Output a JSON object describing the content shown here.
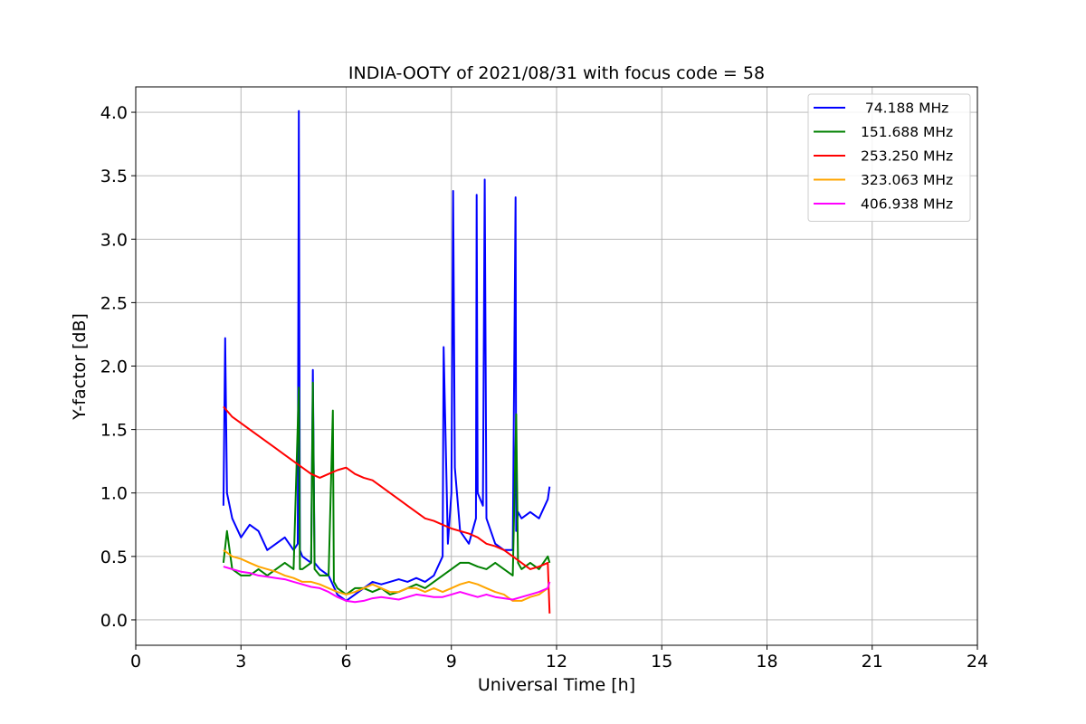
{
  "chart_data": {
    "type": "line",
    "title": "INDIA-OOTY of 2021/08/31 with focus code = 58",
    "xlabel": "Universal Time [h]",
    "ylabel": "Y-factor [dB]",
    "xlim": [
      0,
      24
    ],
    "ylim": [
      -0.2,
      4.2
    ],
    "xticks": [
      0,
      3,
      6,
      9,
      12,
      15,
      18,
      21,
      24
    ],
    "yticks": [
      0.0,
      0.5,
      1.0,
      1.5,
      2.0,
      2.5,
      3.0,
      3.5,
      4.0
    ],
    "xtick_labels": [
      "0",
      "3",
      "6",
      "9",
      "12",
      "15",
      "18",
      "21",
      "24"
    ],
    "ytick_labels": [
      "0.0",
      "0.5",
      "1.0",
      "1.5",
      "2.0",
      "2.5",
      "3.0",
      "3.5",
      "4.0"
    ],
    "grid": true,
    "legend_position": "top-right",
    "series": [
      {
        "name": " 74.188 MHz",
        "color": "#0000ff",
        "x": [
          2.5,
          2.55,
          2.6,
          2.75,
          3.0,
          3.25,
          3.5,
          3.75,
          4.0,
          4.25,
          4.5,
          4.62,
          4.65,
          4.68,
          4.75,
          5.0,
          5.05,
          5.1,
          5.25,
          5.5,
          5.75,
          6.0,
          6.25,
          6.5,
          6.75,
          7.0,
          7.25,
          7.5,
          7.75,
          8.0,
          8.25,
          8.5,
          8.75,
          8.78,
          8.9,
          9.0,
          9.05,
          9.1,
          9.25,
          9.5,
          9.7,
          9.72,
          9.75,
          9.9,
          9.95,
          10.0,
          10.25,
          10.5,
          10.75,
          10.83,
          10.85,
          10.9,
          11.0,
          11.25,
          11.5,
          11.75,
          11.8
        ],
        "y": [
          0.9,
          2.22,
          1.0,
          0.8,
          0.65,
          0.75,
          0.7,
          0.55,
          0.6,
          0.65,
          0.55,
          0.6,
          4.01,
          0.55,
          0.5,
          0.45,
          1.97,
          0.45,
          0.4,
          0.35,
          0.2,
          0.15,
          0.2,
          0.25,
          0.3,
          0.28,
          0.3,
          0.32,
          0.3,
          0.33,
          0.3,
          0.35,
          0.5,
          2.15,
          0.6,
          1.0,
          3.38,
          1.2,
          0.7,
          0.6,
          0.8,
          3.35,
          1.0,
          0.9,
          3.47,
          0.8,
          0.6,
          0.55,
          0.55,
          3.33,
          0.7,
          0.85,
          0.8,
          0.85,
          0.8,
          0.95,
          1.05
        ]
      },
      {
        "name": "151.688 MHz",
        "color": "#008000",
        "x": [
          2.5,
          2.6,
          2.75,
          3.0,
          3.25,
          3.5,
          3.75,
          4.0,
          4.25,
          4.5,
          4.65,
          4.68,
          4.75,
          5.0,
          5.05,
          5.1,
          5.25,
          5.5,
          5.62,
          5.65,
          5.75,
          6.0,
          6.25,
          6.5,
          6.75,
          7.0,
          7.25,
          7.5,
          7.75,
          8.0,
          8.25,
          8.5,
          8.75,
          9.0,
          9.25,
          9.5,
          9.75,
          10.0,
          10.25,
          10.5,
          10.75,
          10.85,
          10.9,
          11.0,
          11.25,
          11.5,
          11.75,
          11.8
        ],
        "y": [
          0.45,
          0.7,
          0.4,
          0.35,
          0.35,
          0.4,
          0.35,
          0.4,
          0.45,
          0.4,
          1.83,
          0.4,
          0.4,
          0.45,
          1.87,
          0.4,
          0.35,
          0.35,
          1.65,
          0.3,
          0.25,
          0.2,
          0.25,
          0.25,
          0.22,
          0.25,
          0.2,
          0.22,
          0.25,
          0.28,
          0.25,
          0.3,
          0.35,
          0.4,
          0.45,
          0.45,
          0.42,
          0.4,
          0.45,
          0.4,
          0.35,
          1.62,
          0.45,
          0.4,
          0.45,
          0.4,
          0.5,
          0.45
        ]
      },
      {
        "name": "253.250 MHz",
        "color": "#ff0000",
        "x": [
          2.5,
          2.75,
          3.0,
          3.25,
          3.5,
          3.75,
          4.0,
          4.25,
          4.5,
          4.75,
          5.0,
          5.25,
          5.5,
          5.75,
          6.0,
          6.25,
          6.5,
          6.75,
          7.0,
          7.25,
          7.5,
          7.75,
          8.0,
          8.25,
          8.5,
          8.75,
          9.0,
          9.25,
          9.5,
          9.75,
          10.0,
          10.25,
          10.5,
          10.75,
          11.0,
          11.25,
          11.5,
          11.75,
          11.8
        ],
        "y": [
          1.68,
          1.6,
          1.55,
          1.5,
          1.45,
          1.4,
          1.35,
          1.3,
          1.25,
          1.2,
          1.15,
          1.12,
          1.15,
          1.18,
          1.2,
          1.15,
          1.12,
          1.1,
          1.05,
          1.0,
          0.95,
          0.9,
          0.85,
          0.8,
          0.78,
          0.75,
          0.72,
          0.7,
          0.68,
          0.65,
          0.6,
          0.58,
          0.55,
          0.5,
          0.45,
          0.4,
          0.42,
          0.45,
          0.05
        ]
      },
      {
        "name": "323.063 MHz",
        "color": "#ffa500",
        "x": [
          2.5,
          2.75,
          3.0,
          3.25,
          3.5,
          3.75,
          4.0,
          4.25,
          4.5,
          4.75,
          5.0,
          5.25,
          5.5,
          5.75,
          6.0,
          6.25,
          6.5,
          6.75,
          7.0,
          7.25,
          7.5,
          7.75,
          8.0,
          8.25,
          8.5,
          8.75,
          9.0,
          9.25,
          9.5,
          9.75,
          10.0,
          10.25,
          10.5,
          10.75,
          11.0,
          11.25,
          11.5,
          11.75,
          11.8
        ],
        "y": [
          0.55,
          0.5,
          0.48,
          0.45,
          0.42,
          0.4,
          0.38,
          0.35,
          0.33,
          0.3,
          0.3,
          0.28,
          0.25,
          0.22,
          0.2,
          0.22,
          0.25,
          0.28,
          0.25,
          0.22,
          0.22,
          0.25,
          0.25,
          0.22,
          0.25,
          0.22,
          0.25,
          0.28,
          0.3,
          0.28,
          0.25,
          0.22,
          0.2,
          0.15,
          0.15,
          0.18,
          0.2,
          0.25,
          0.3
        ]
      },
      {
        "name": "406.938 MHz",
        "color": "#ff00ff",
        "x": [
          2.5,
          2.75,
          3.0,
          3.25,
          3.5,
          3.75,
          4.0,
          4.25,
          4.5,
          4.75,
          5.0,
          5.25,
          5.5,
          5.75,
          6.0,
          6.25,
          6.5,
          6.75,
          7.0,
          7.25,
          7.5,
          7.75,
          8.0,
          8.25,
          8.5,
          8.75,
          9.0,
          9.25,
          9.5,
          9.75,
          10.0,
          10.25,
          10.5,
          10.75,
          11.0,
          11.25,
          11.5,
          11.75,
          11.8
        ],
        "y": [
          0.42,
          0.4,
          0.38,
          0.37,
          0.35,
          0.34,
          0.33,
          0.32,
          0.3,
          0.28,
          0.26,
          0.25,
          0.22,
          0.18,
          0.15,
          0.14,
          0.15,
          0.17,
          0.18,
          0.17,
          0.16,
          0.18,
          0.2,
          0.19,
          0.18,
          0.18,
          0.2,
          0.22,
          0.2,
          0.18,
          0.2,
          0.18,
          0.17,
          0.16,
          0.18,
          0.2,
          0.22,
          0.25,
          0.3
        ]
      }
    ]
  }
}
